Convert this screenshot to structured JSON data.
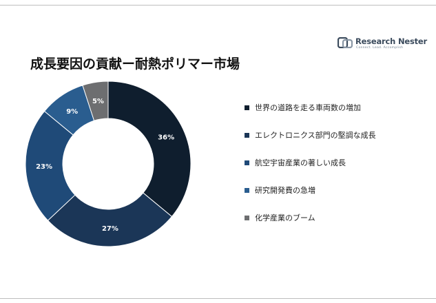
{
  "brand": {
    "name": "Research Nester",
    "tagline": "Connect. Lead. Accomplish",
    "logo_icon": "research-nester-logo-icon"
  },
  "title": "成長要因の貢献ー耐熱ポリマー市場",
  "chart_data": {
    "type": "donut",
    "title": "成長要因の貢献ー耐熱ポリマー市場",
    "legend_position": "right",
    "start_angle_deg": 0,
    "direction": "clockwise",
    "slices": [
      {
        "label": "世界の道路を走る車両数の増加",
        "value": 36,
        "value_label": "36%",
        "color": "#0f1e2e"
      },
      {
        "label": "エレクトロニクス部門の堅調な成長",
        "value": 27,
        "value_label": "27%",
        "color": "#1b3657"
      },
      {
        "label": "航空宇宙産業の著しい成長",
        "value": 23,
        "value_label": "23%",
        "color": "#1f4a78"
      },
      {
        "label": "研究開発費の急増",
        "value": 9,
        "value_label": "9%",
        "color": "#2a5d8f"
      },
      {
        "label": "化学産業のブーム",
        "value": 5,
        "value_label": "5%",
        "color": "#6d6e70"
      }
    ]
  }
}
